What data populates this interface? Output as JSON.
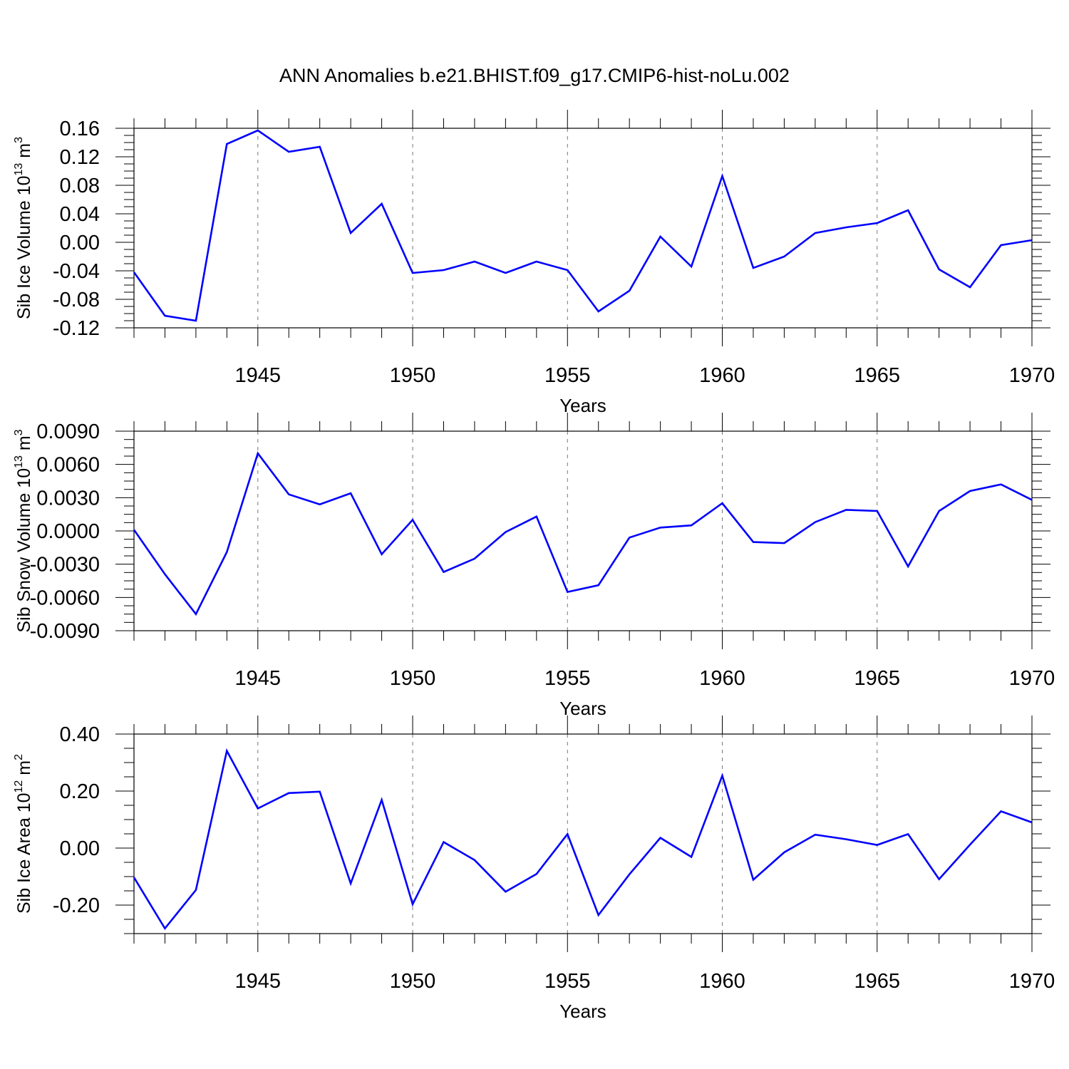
{
  "title": "ANN Anomalies b.e21.BHIST.f09_g17.CMIP6-hist-noLu.002",
  "line_color": "#0000ff",
  "chart_data": [
    {
      "type": "line",
      "id": "ice-volume",
      "ylabel": {
        "base": "Sib Ice Volume 10",
        "exp": "13",
        "unit": " m",
        "unit_exp": "3"
      },
      "xlabel": "Years",
      "xlim": [
        1941,
        1970
      ],
      "ylim": [
        -0.12,
        0.16
      ],
      "yticks": [
        -0.12,
        -0.08,
        -0.04,
        0.0,
        0.04,
        0.08,
        0.12,
        0.16
      ],
      "ytick_labels": [
        "-0.12",
        "-0.08",
        "-0.04",
        "0.00",
        "0.04",
        "0.08",
        "0.12",
        "0.16"
      ],
      "xticks": [
        1945,
        1950,
        1955,
        1960,
        1965,
        1970
      ],
      "xtick_labels": [
        "1945",
        "1950",
        "1955",
        "1960",
        "1965",
        "1970"
      ],
      "x": [
        1941,
        1942,
        1943,
        1944,
        1945,
        1946,
        1947,
        1948,
        1949,
        1950,
        1951,
        1952,
        1953,
        1954,
        1955,
        1956,
        1957,
        1958,
        1959,
        1960,
        1961,
        1962,
        1963,
        1964,
        1965,
        1966,
        1967,
        1968,
        1969,
        1970
      ],
      "values": [
        -0.042,
        -0.103,
        -0.11,
        0.138,
        0.157,
        0.127,
        0.134,
        0.013,
        0.054,
        -0.043,
        -0.039,
        -0.027,
        -0.043,
        -0.027,
        -0.039,
        -0.097,
        -0.068,
        0.008,
        -0.034,
        0.093,
        -0.036,
        -0.02,
        0.013,
        0.021,
        0.027,
        0.045,
        -0.038,
        -0.063,
        -0.004,
        0.003
      ]
    },
    {
      "type": "line",
      "id": "snow-volume",
      "ylabel": {
        "base": "Sib Snow Volume 10",
        "exp": "13",
        "unit": " m",
        "unit_exp": "3"
      },
      "xlabel": "Years",
      "xlim": [
        1941,
        1970
      ],
      "ylim": [
        -0.009,
        0.009
      ],
      "yticks": [
        -0.009,
        -0.006,
        -0.003,
        0.0,
        0.003,
        0.006,
        0.009
      ],
      "ytick_labels": [
        "-0.0090",
        "-0.0060",
        "-0.0030",
        "0.0000",
        "0.0030",
        "0.0060",
        "0.0090"
      ],
      "xticks": [
        1945,
        1950,
        1955,
        1960,
        1965,
        1970
      ],
      "xtick_labels": [
        "1945",
        "1950",
        "1955",
        "1960",
        "1965",
        "1970"
      ],
      "x": [
        1941,
        1942,
        1943,
        1944,
        1945,
        1946,
        1947,
        1948,
        1949,
        1950,
        1951,
        1952,
        1953,
        1954,
        1955,
        1956,
        1957,
        1958,
        1959,
        1960,
        1961,
        1962,
        1963,
        1964,
        1965,
        1966,
        1967,
        1968,
        1969,
        1970
      ],
      "values": [
        0.0001,
        -0.0039,
        -0.0075,
        -0.0019,
        0.007,
        0.0033,
        0.0024,
        0.0034,
        -0.0021,
        0.001,
        -0.0037,
        -0.0025,
        -0.0001,
        0.0013,
        -0.0055,
        -0.0049,
        -0.0006,
        0.0003,
        0.0005,
        0.0025,
        -0.001,
        -0.0011,
        0.0008,
        0.0019,
        0.0018,
        -0.0032,
        0.0018,
        0.0036,
        0.0042,
        0.0028
      ]
    },
    {
      "type": "line",
      "id": "ice-area",
      "ylabel": {
        "base": "Sib Ice Area 10",
        "exp": "12",
        "unit": " m",
        "unit_exp": "2"
      },
      "xlabel": "Years",
      "xlim": [
        1941,
        1970
      ],
      "ylim": [
        -0.3,
        0.4
      ],
      "yticks": [
        -0.2,
        0.0,
        0.2,
        0.4
      ],
      "ytick_labels": [
        "-0.20",
        "0.00",
        "0.20",
        "0.40"
      ],
      "xticks": [
        1945,
        1950,
        1955,
        1960,
        1965,
        1970
      ],
      "xtick_labels": [
        "1945",
        "1950",
        "1955",
        "1960",
        "1965",
        "1970"
      ],
      "x": [
        1941,
        1942,
        1943,
        1944,
        1945,
        1946,
        1947,
        1948,
        1949,
        1950,
        1951,
        1952,
        1953,
        1954,
        1955,
        1956,
        1957,
        1958,
        1959,
        1960,
        1961,
        1962,
        1963,
        1964,
        1965,
        1966,
        1967,
        1968,
        1969,
        1970
      ],
      "values": [
        -0.103,
        -0.282,
        -0.147,
        0.341,
        0.139,
        0.193,
        0.198,
        -0.124,
        0.169,
        -0.197,
        0.021,
        -0.042,
        -0.153,
        -0.091,
        0.049,
        -0.235,
        -0.092,
        0.036,
        -0.031,
        0.254,
        -0.111,
        -0.015,
        0.047,
        0.031,
        0.011,
        0.049,
        -0.109,
        0.012,
        0.129,
        0.09
      ]
    }
  ]
}
